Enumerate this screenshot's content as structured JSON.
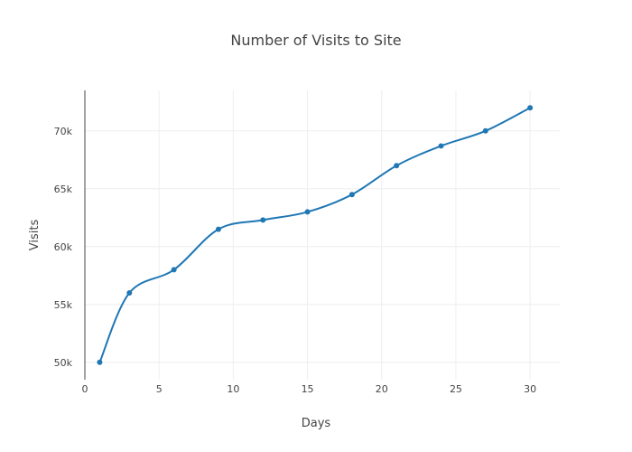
{
  "chart_data": {
    "type": "line",
    "title": "Number of Visits to Site",
    "xlabel": "Days",
    "ylabel": "Visits",
    "xlim": [
      0,
      32
    ],
    "ylim": [
      48500,
      73500
    ],
    "x_ticks": [
      {
        "value": 0,
        "label": "0"
      },
      {
        "value": 5,
        "label": "5"
      },
      {
        "value": 10,
        "label": "10"
      },
      {
        "value": 15,
        "label": "15"
      },
      {
        "value": 20,
        "label": "20"
      },
      {
        "value": 25,
        "label": "25"
      },
      {
        "value": 30,
        "label": "30"
      }
    ],
    "y_ticks": [
      {
        "value": 50000,
        "label": "50k"
      },
      {
        "value": 55000,
        "label": "55k"
      },
      {
        "value": 60000,
        "label": "60k"
      },
      {
        "value": 65000,
        "label": "65k"
      },
      {
        "value": 70000,
        "label": "70k"
      }
    ],
    "grid": true,
    "legend": "none",
    "line_shape": "spline",
    "series": [
      {
        "color": "#1f77b4",
        "x": [
          1,
          3,
          6,
          9,
          12,
          15,
          18,
          21,
          24,
          27,
          30
        ],
        "y": [
          50000,
          56000,
          58000,
          61500,
          62300,
          63000,
          64500,
          67000,
          68700,
          70000,
          72000
        ]
      }
    ]
  }
}
